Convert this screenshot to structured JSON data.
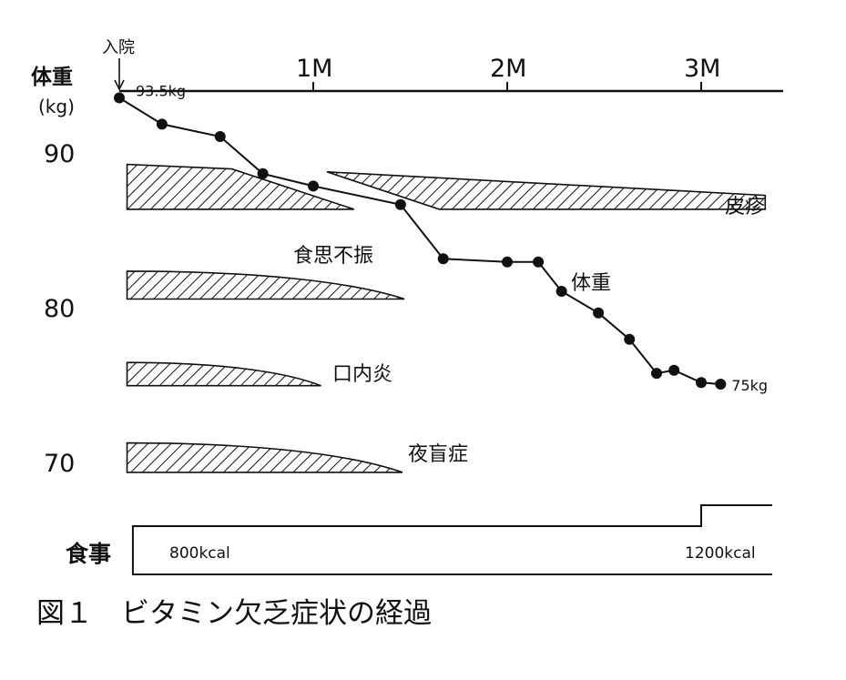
{
  "chart_data": {
    "type": "line",
    "caption": "図１　ビタミン欠乏症状の経過",
    "x_axis": {
      "ticks": [
        {
          "value": 1,
          "label": "1M"
        },
        {
          "value": 2,
          "label": "2M"
        },
        {
          "value": 3,
          "label": "3M"
        }
      ],
      "start_marker": "入院",
      "range": [
        0,
        3.4
      ]
    },
    "y_axis": {
      "label": "体重",
      "unit": "(kg)",
      "ticks": [
        70,
        80,
        90
      ],
      "range": [
        67,
        96
      ]
    },
    "series": [
      {
        "name": "体重",
        "x": [
          0.0,
          0.22,
          0.52,
          0.74,
          1.0,
          1.45,
          1.67,
          2.0,
          2.16,
          2.28,
          2.47,
          2.63,
          2.77,
          2.86,
          3.0,
          3.1
        ],
        "y": [
          93.5,
          91.8,
          91.0,
          88.6,
          87.8,
          86.6,
          83.1,
          82.9,
          82.9,
          81.0,
          79.6,
          77.9,
          75.7,
          75.9,
          75.1,
          75.0
        ],
        "start_label": "93.5kg",
        "end_label": "75kg"
      }
    ],
    "symptoms": [
      {
        "name": "皮疹",
        "segments": [
          {
            "x_start": 0.04,
            "x_end": 1.21,
            "y_top": 89.2,
            "y_bottom": 86.3
          },
          {
            "x_start": 1.07,
            "x_end": 3.33,
            "y_top": 88.6,
            "y_bottom": 86.3
          }
        ]
      },
      {
        "name": "食思不振",
        "x_start": 0.04,
        "x_end": 1.47,
        "y_top": 82.3,
        "y_bottom": 80.5
      },
      {
        "name": "口内炎",
        "x_start": 0.04,
        "x_end": 1.04,
        "y_top": 76.4,
        "y_bottom": 74.9
      },
      {
        "name": "夜盲症",
        "x_start": 0.04,
        "x_end": 1.46,
        "y_top": 71.2,
        "y_bottom": 69.3
      }
    ],
    "diet": {
      "label": "食事",
      "phases": [
        {
          "label": "800kcal",
          "x_start": 0.07,
          "x_end": 3.0,
          "kcal": 800
        },
        {
          "label": "1200kcal",
          "x_start": 3.0,
          "x_end": 3.4,
          "kcal": 1200
        }
      ]
    }
  }
}
